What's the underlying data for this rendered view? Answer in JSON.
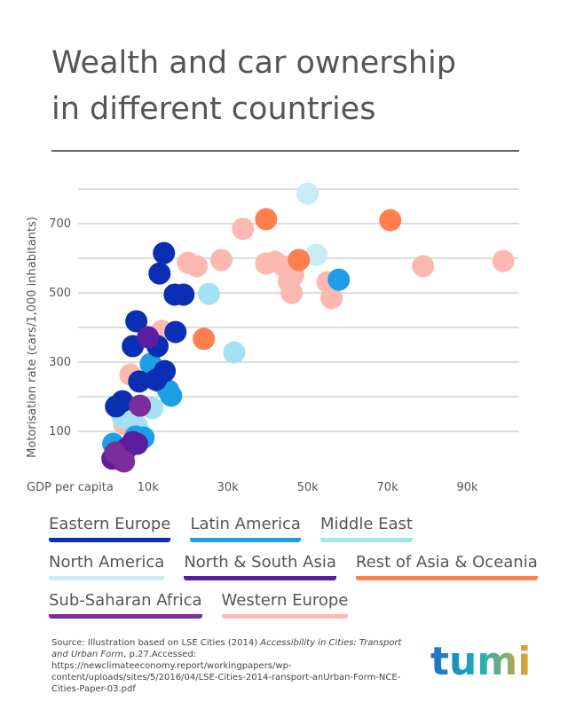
{
  "chart_data": {
    "type": "scatter",
    "title": [
      "Wealth and car ownership",
      "in different countries"
    ],
    "x_label": "GDP per capita",
    "y_label": "Motorisation rate (cars/1,000 inhabitants)",
    "xlim": [
      -7500,
      103000
    ],
    "ylim": [
      0,
      800
    ],
    "xticks": [
      {
        "value": 10000,
        "label": "10k"
      },
      {
        "value": 30000,
        "label": "30k"
      },
      {
        "value": 50000,
        "label": "50k"
      },
      {
        "value": 70000,
        "label": "70k"
      },
      {
        "value": 90000,
        "label": "90k"
      }
    ],
    "yticks": [
      100,
      300,
      500,
      700
    ],
    "minor_yticks": [
      200,
      400,
      600,
      800
    ],
    "grid": true,
    "series": [
      {
        "name": "Western Europe",
        "color": "#fbb9b1",
        "x": [
          33800,
          28400,
          20000,
          22200,
          39600,
          41800,
          44000,
          46400,
          46000,
          45300,
          55000,
          56000,
          78900,
          99000,
          13500,
          5600,
          4000
        ],
        "values": [
          685,
          595,
          587,
          577,
          585,
          590,
          577,
          551,
          500,
          533,
          531,
          485,
          577,
          592,
          390,
          264,
          121
        ]
      },
      {
        "name": "Middle East",
        "color": "#a3e2f3",
        "x": [
          25300,
          31600,
          11100,
          7300,
          3600
        ],
        "values": [
          497,
          328,
          167,
          115,
          141
        ]
      },
      {
        "name": "North America",
        "color": "#c9ecf7",
        "x": [
          50000,
          52200
        ],
        "values": [
          787,
          610
        ]
      },
      {
        "name": "Rest of Asia & Oceania",
        "color": "#ff7f4f",
        "x": [
          39600,
          70700,
          24000,
          47800
        ],
        "values": [
          713,
          710,
          367,
          595
        ]
      },
      {
        "name": "Latin America",
        "color": "#1c9fe6",
        "x": [
          10700,
          12900,
          15100,
          15800,
          8900,
          1300,
          4000,
          57800,
          6900
        ],
        "values": [
          295,
          244,
          218,
          203,
          82,
          64,
          38,
          538,
          85
        ]
      },
      {
        "name": "Eastern Europe",
        "color": "#0b2fb3",
        "x": [
          14000,
          12900,
          16700,
          18900,
          16900,
          7100,
          6200,
          12400,
          14200,
          12000,
          7800,
          3600,
          2000
        ],
        "values": [
          615,
          556,
          495,
          495,
          387,
          418,
          346,
          346,
          274,
          249,
          244,
          187,
          172
        ]
      },
      {
        "name": "North & South Asia",
        "color": "#5b1ea0",
        "x": [
          10000,
          1100,
          3100,
          6200,
          7300,
          4700
        ],
        "values": [
          372,
          21,
          18,
          69,
          64,
          51
        ]
      },
      {
        "name": "Sub-Saharan Africa",
        "color": "#7c2d9c",
        "x": [
          8000,
          1800,
          4000
        ],
        "values": [
          174,
          38,
          13
        ]
      }
    ],
    "legend_order": [
      5,
      4,
      1,
      2,
      6,
      3,
      7,
      0
    ],
    "source": [
      "Source: Illustration based on LSE Cities (2014) ",
      "Accessibility in Cities: Transport and Urban Form",
      ", p.27.Accessed: https://newclimateeconomy.report/workingpapers/wp-content/uploads/sites/5/2016/04/LSE-Cities-2014-ransport-anUrban-Form-NCE-Cities-Paper-03.pdf"
    ],
    "logo": "tumi"
  }
}
